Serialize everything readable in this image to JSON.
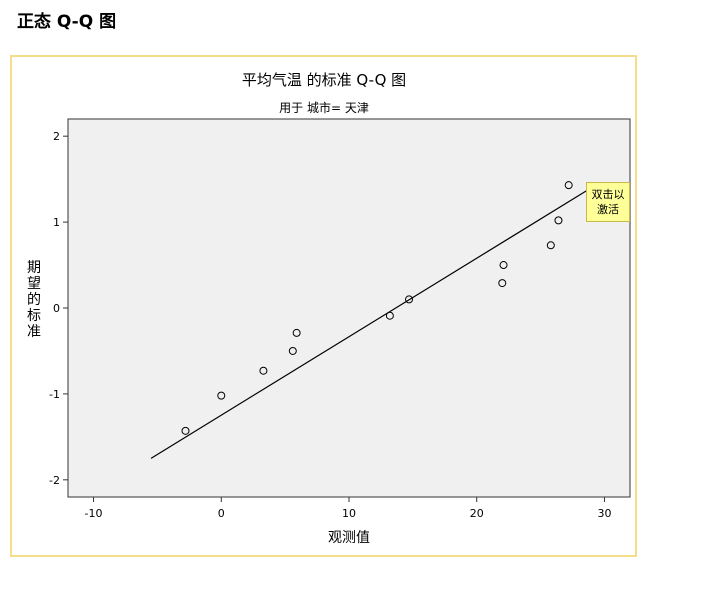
{
  "page": {
    "heading": "正态 Q-Q 图"
  },
  "tooltip": {
    "line1": "双击以",
    "line2": "激活"
  },
  "chart_data": {
    "type": "scatter",
    "title": "平均气温 的标准 Q-Q 图",
    "subtitle": "用于 城市= 天津",
    "xlabel": "观测值",
    "ylabel": "期望的标准",
    "xlim": [
      -12,
      32
    ],
    "ylim": [
      -2.2,
      2.2
    ],
    "x_ticks": [
      -10,
      0,
      10,
      20,
      30
    ],
    "y_ticks": [
      2,
      1,
      0,
      -1,
      -2
    ],
    "grid": false,
    "background": "#f0f0f0",
    "points": [
      {
        "x": -2.8,
        "y": -1.43
      },
      {
        "x": 0.0,
        "y": -1.02
      },
      {
        "x": 3.3,
        "y": -0.73
      },
      {
        "x": 5.6,
        "y": -0.5
      },
      {
        "x": 5.9,
        "y": -0.29
      },
      {
        "x": 13.2,
        "y": -0.09
      },
      {
        "x": 14.7,
        "y": 0.1
      },
      {
        "x": 22.0,
        "y": 0.29
      },
      {
        "x": 22.1,
        "y": 0.5
      },
      {
        "x": 25.8,
        "y": 0.73
      },
      {
        "x": 26.4,
        "y": 1.02
      },
      {
        "x": 27.2,
        "y": 1.43
      }
    ],
    "reference_line": [
      {
        "x": -5.5,
        "y": -1.75
      },
      {
        "x": 29.2,
        "y": 1.42
      }
    ]
  }
}
